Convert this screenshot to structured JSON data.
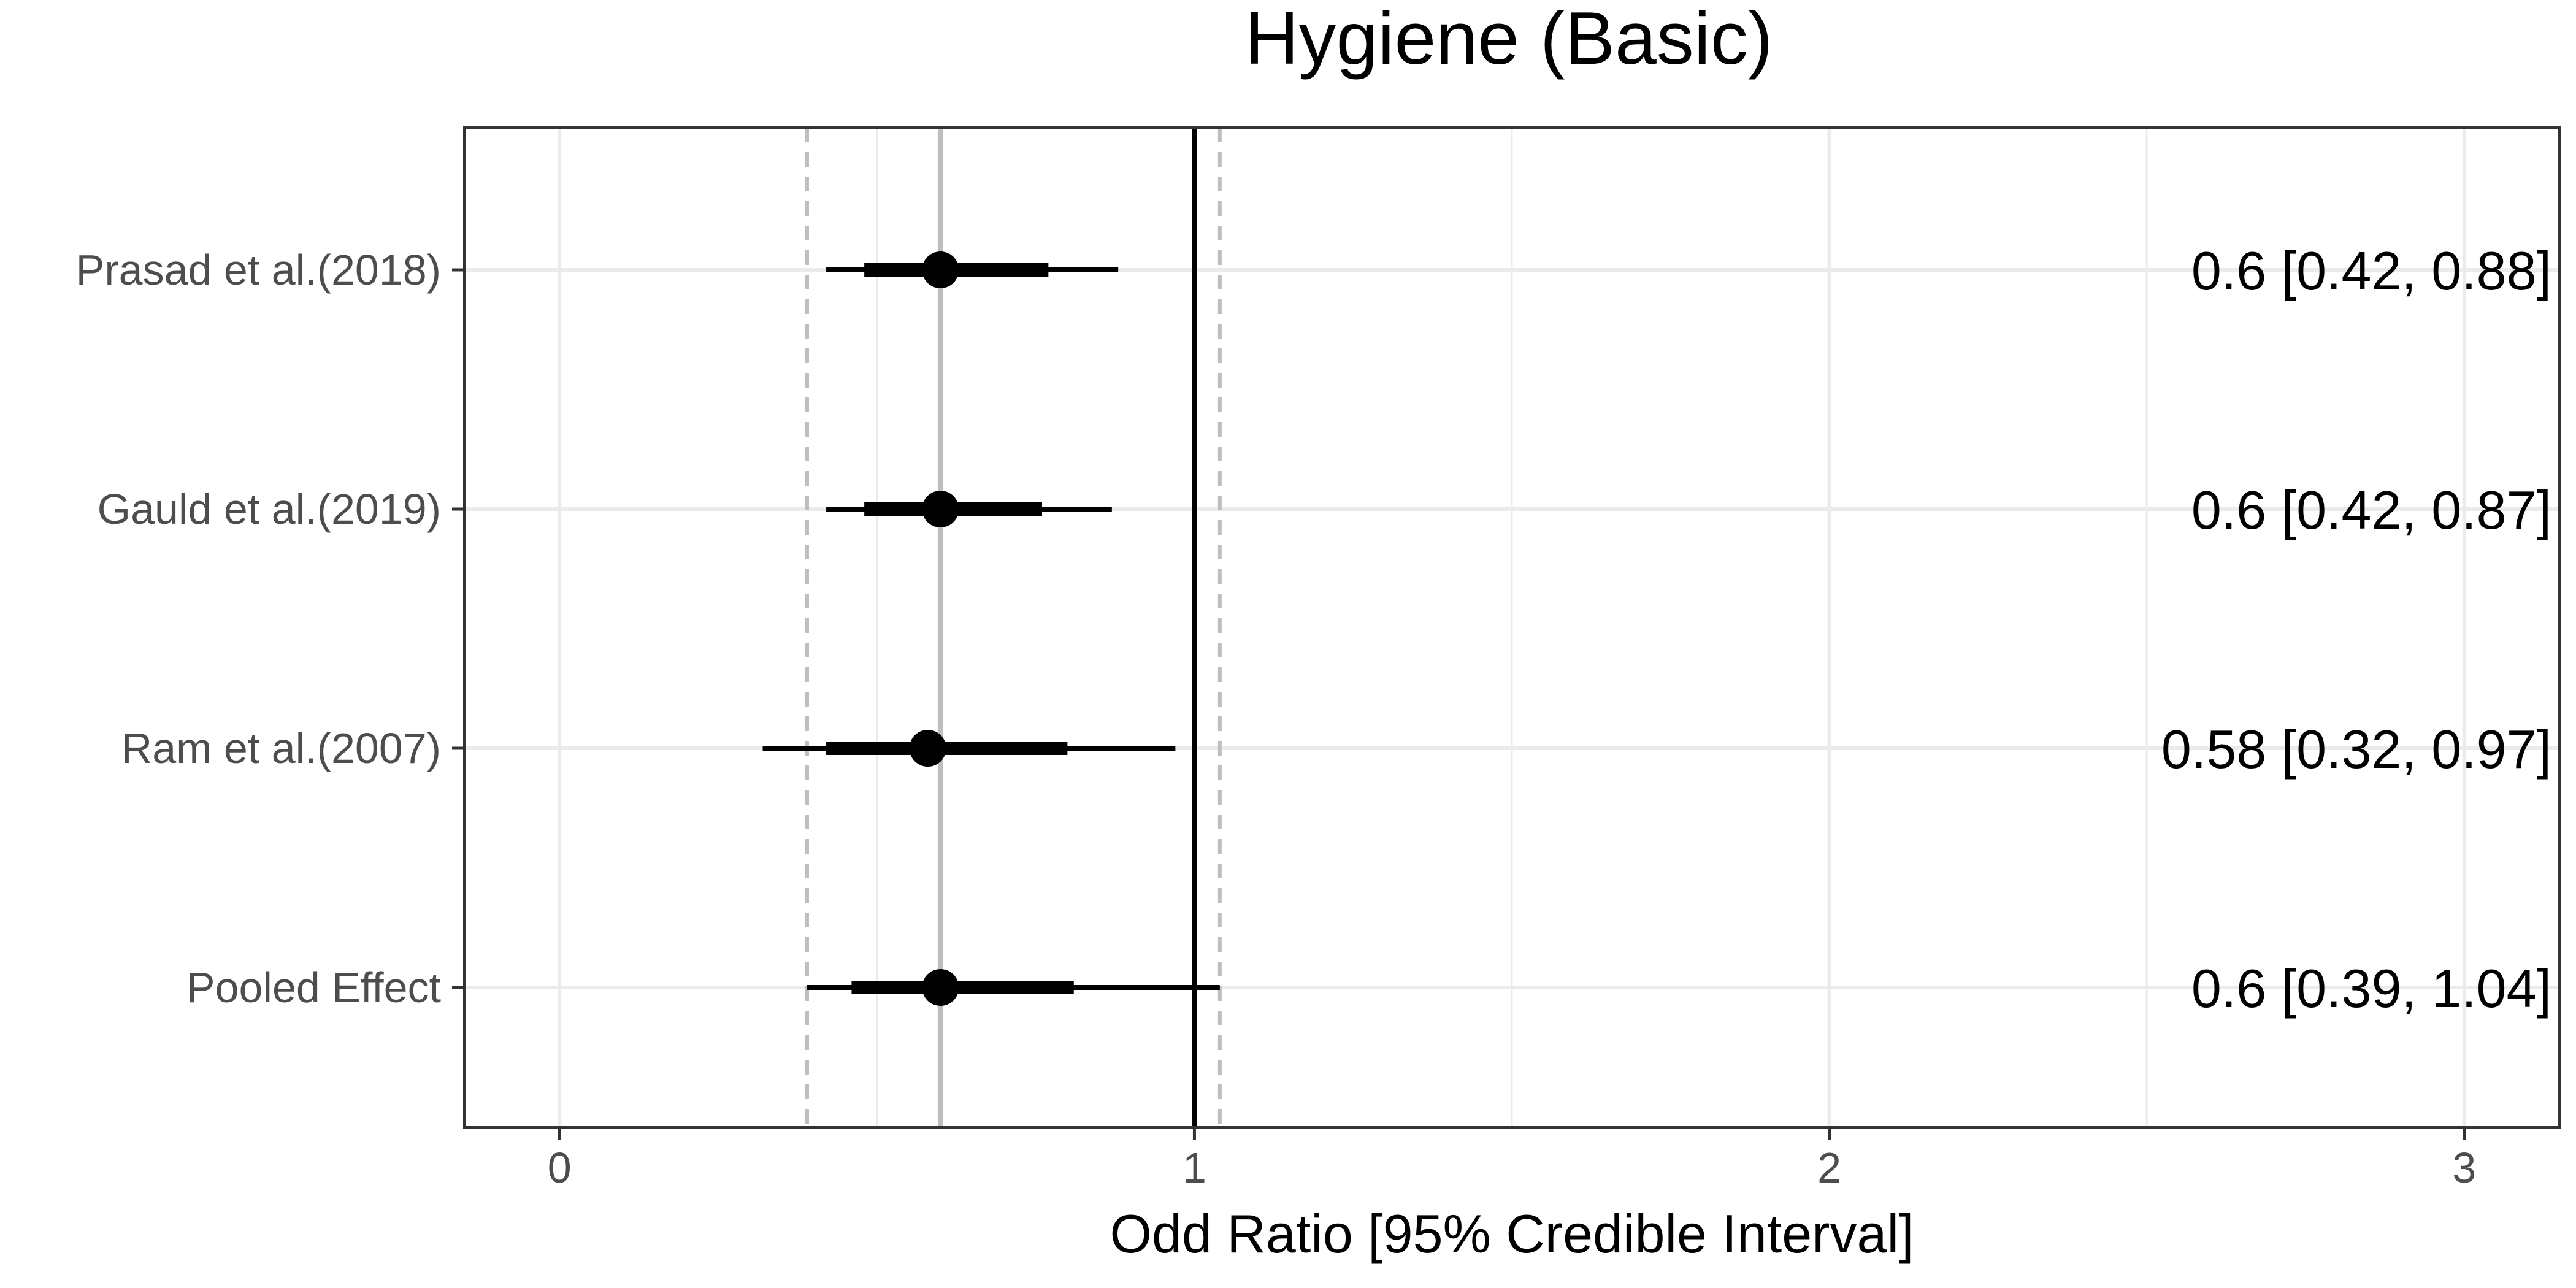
{
  "chart_data": {
    "type": "forest",
    "title": "Hygiene (Basic)",
    "xlabel": "Odd Ratio [95% Credible Interval]",
    "ylabel": "",
    "xlim": [
      -0.15,
      3.15
    ],
    "x_ticks": [
      0,
      1,
      2,
      3
    ],
    "x_tick_labels": [
      "0",
      "1",
      "2",
      "3"
    ],
    "grid": true,
    "reference_line": 1,
    "pooled_estimate_line": 0.6,
    "pooled_interval_lines": [
      0.39,
      1.04
    ],
    "studies": [
      {
        "label": "Prasad et al.(2018)",
        "estimate": 0.6,
        "inner_low": 0.48,
        "inner_high": 0.77,
        "low": 0.42,
        "high": 0.88,
        "text": "0.6 [0.42, 0.88]"
      },
      {
        "label": "Gauld et al.(2019)",
        "estimate": 0.6,
        "inner_low": 0.48,
        "inner_high": 0.76,
        "low": 0.42,
        "high": 0.87,
        "text": "0.6 [0.42, 0.87]"
      },
      {
        "label": "Ram et al.(2007)",
        "estimate": 0.58,
        "inner_low": 0.42,
        "inner_high": 0.8,
        "low": 0.32,
        "high": 0.97,
        "text": "0.58 [0.32, 0.97]"
      },
      {
        "label": "Pooled Effect",
        "estimate": 0.6,
        "inner_low": 0.46,
        "inner_high": 0.81,
        "low": 0.39,
        "high": 1.04,
        "text": "0.6 [0.39, 1.04]"
      }
    ],
    "colors": {
      "point": "#000000",
      "reference_line": "#000000",
      "pooled_line": "#bebebe",
      "interval_lines": "#bebebe",
      "grid": "#ebebeb",
      "panel_border": "#333333"
    }
  }
}
